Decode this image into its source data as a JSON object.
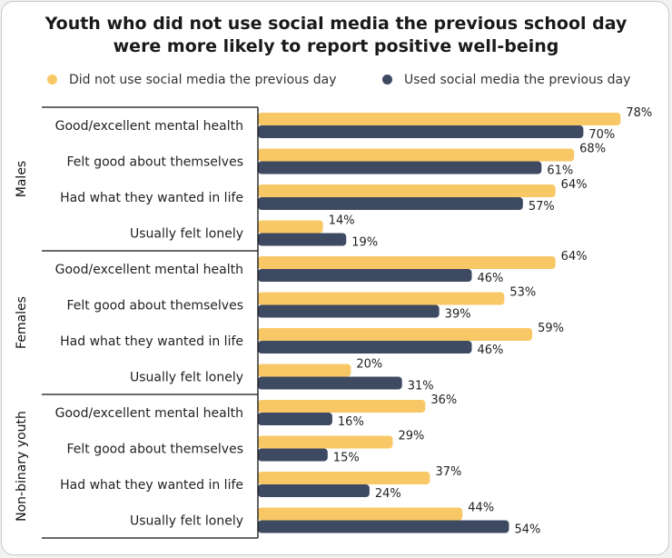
{
  "title_line1": "Youth who did not use social media the previous school day",
  "title_line2": "were more likely to report positive well-being",
  "colors": {
    "not_used": "#f9c866",
    "used": "#3e4a61"
  },
  "chart_data": {
    "type": "bar",
    "orientation": "horizontal",
    "title": "Youth who did not use social media the previous school day were more likely to report positive well-being",
    "legend_position": "top",
    "xlim": [
      0,
      100
    ],
    "value_suffix": "%",
    "series": [
      {
        "name": "Did not use social media the previous day",
        "color": "#f9c866"
      },
      {
        "name": "Used social media the previous day",
        "color": "#3e4a61"
      }
    ],
    "groups": [
      {
        "name": "Males",
        "categories": [
          "Good/excellent mental health",
          "Felt good about themselves",
          "Had what they wanted in life",
          "Usually felt lonely"
        ],
        "not_used": [
          78,
          68,
          64,
          14
        ],
        "used": [
          70,
          61,
          57,
          19
        ]
      },
      {
        "name": "Females",
        "categories": [
          "Good/excellent mental health",
          "Felt good about themselves",
          "Had what they wanted in life",
          "Usually felt lonely"
        ],
        "not_used": [
          64,
          53,
          59,
          20
        ],
        "used": [
          46,
          39,
          46,
          31
        ]
      },
      {
        "name": "Non-binary youth",
        "categories": [
          "Good/excellent mental health",
          "Felt good about themselves",
          "Had what they wanted in life",
          "Usually felt lonely"
        ],
        "not_used": [
          36,
          29,
          37,
          44
        ],
        "used": [
          16,
          15,
          24,
          54
        ]
      }
    ]
  }
}
